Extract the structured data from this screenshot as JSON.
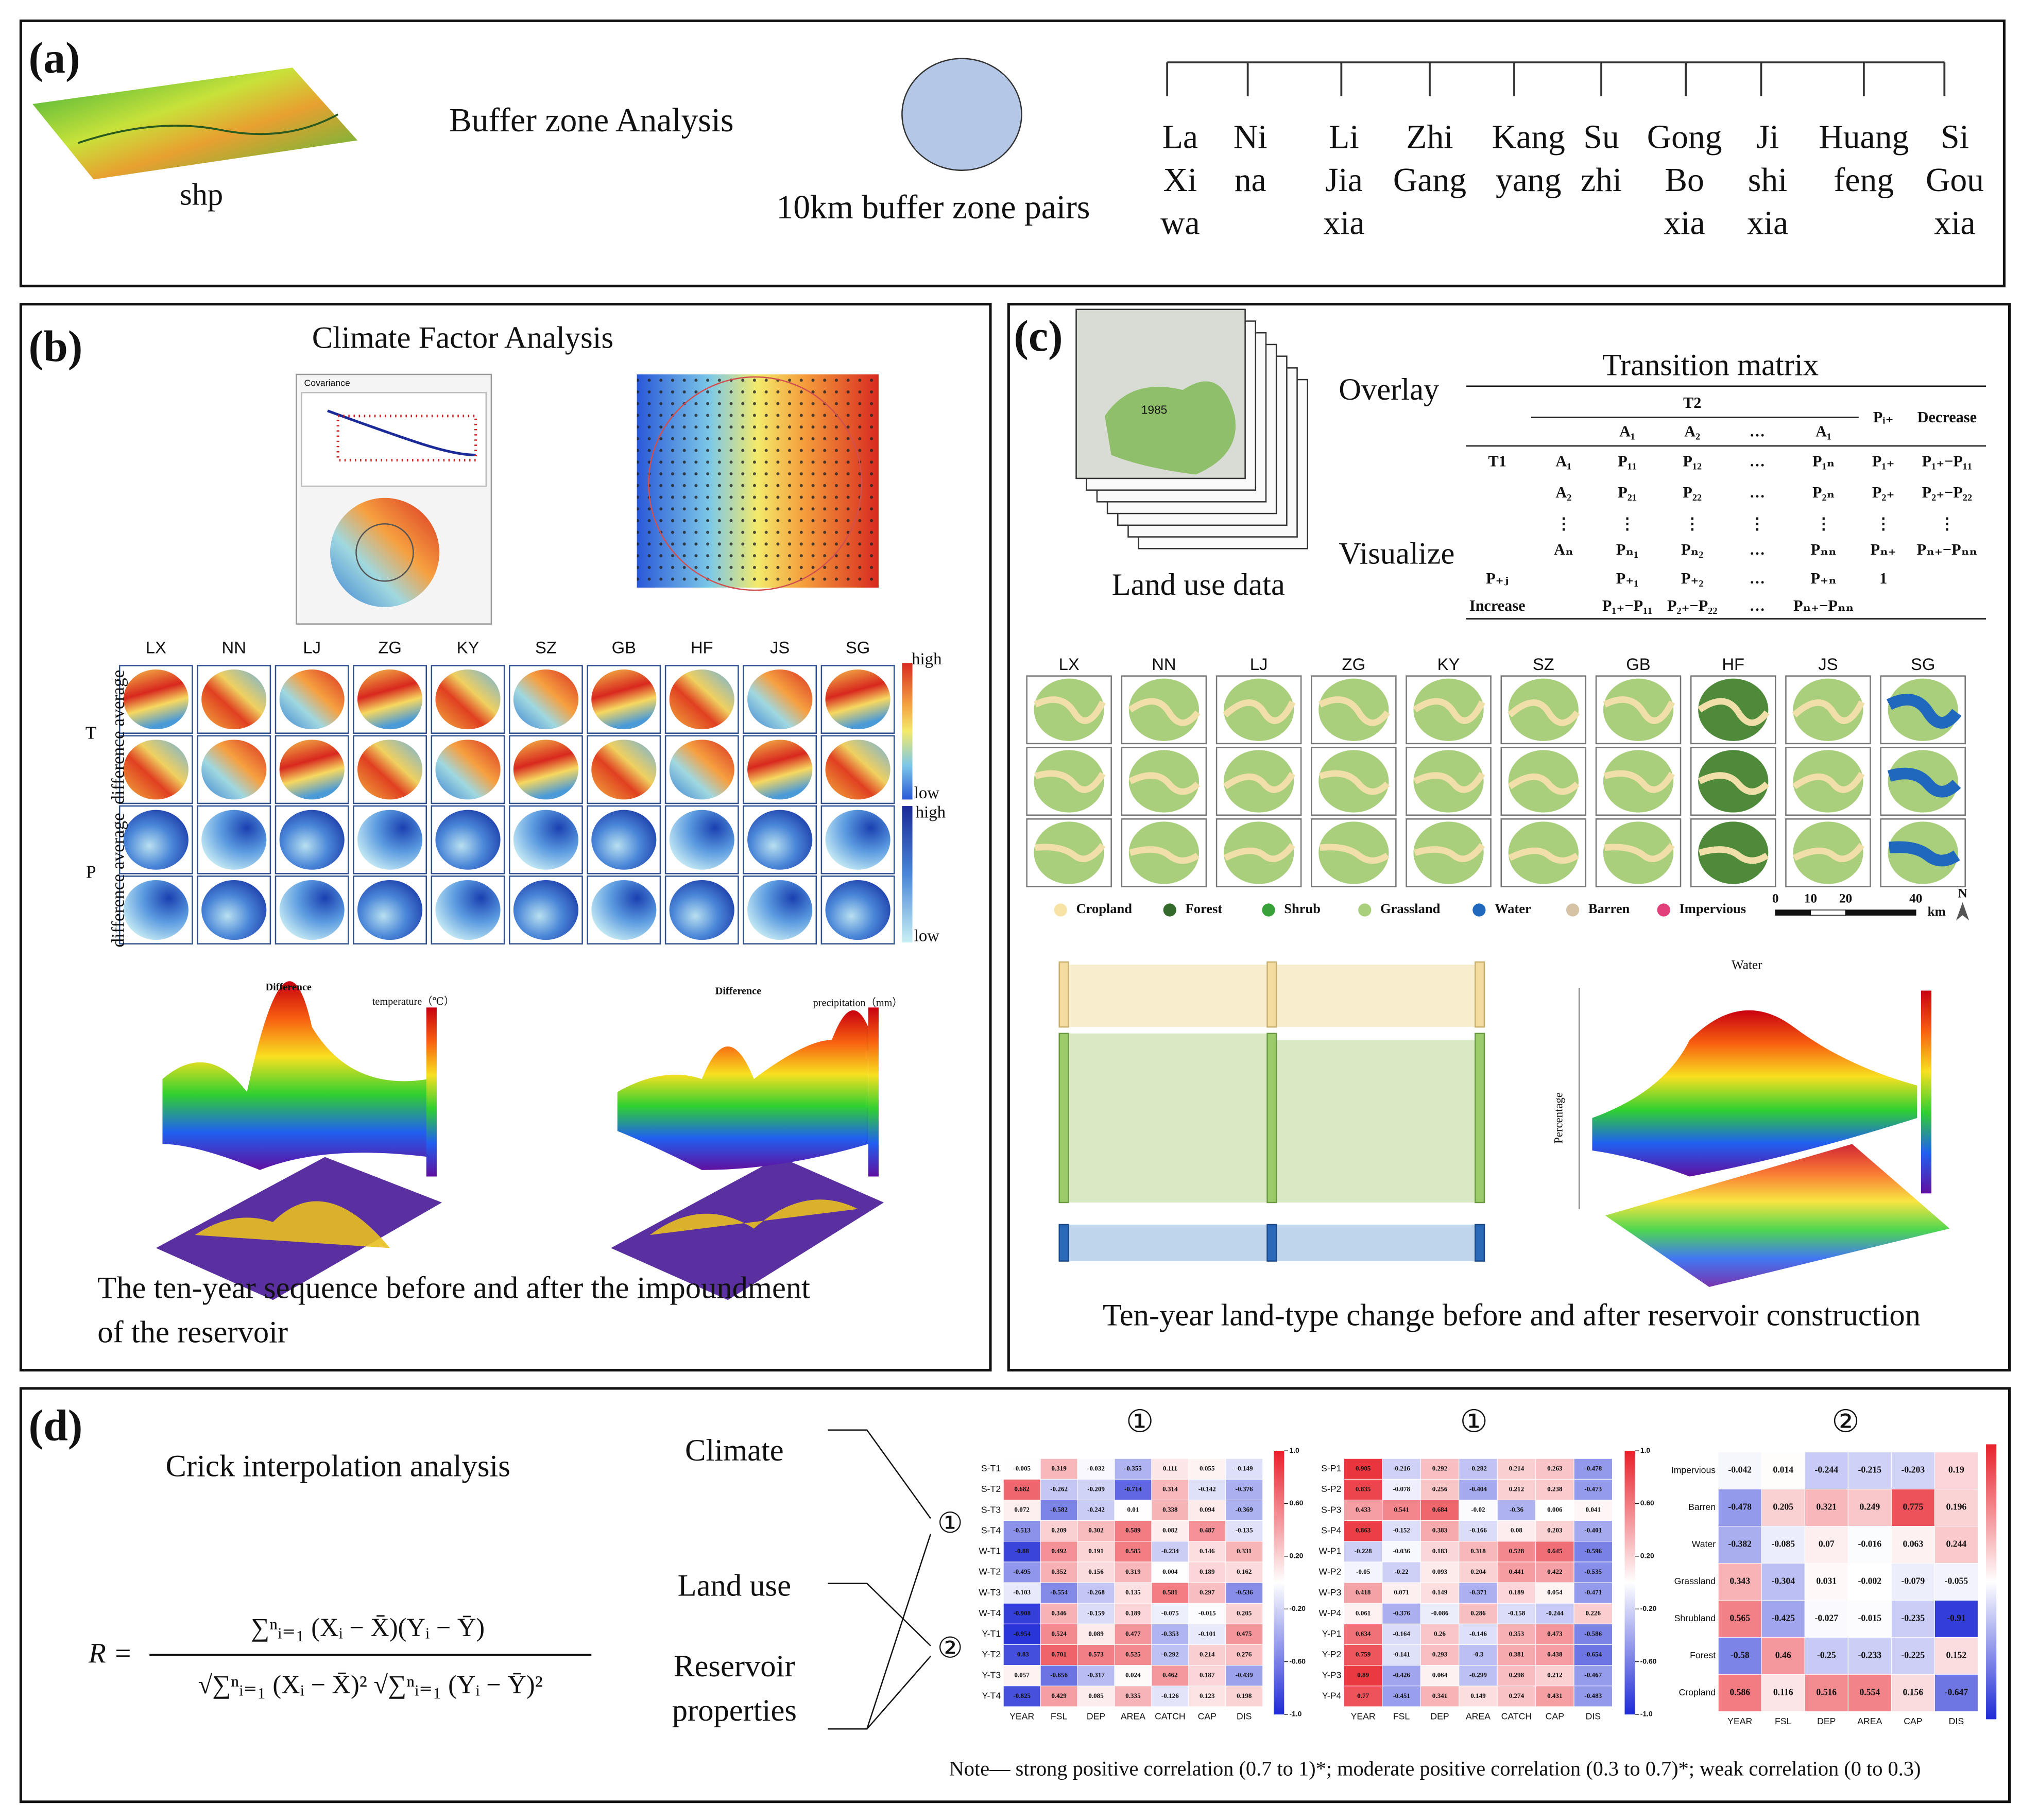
{
  "panel_a": {
    "label": "(a)",
    "shp": "shp",
    "buffer_title": "Buffer zone Analysis",
    "buffer_pairs": "10km buffer zone pairs",
    "stations": [
      [
        "La",
        "Xi",
        "wa"
      ],
      [
        "Ni",
        "na"
      ],
      [
        "Li",
        "Jia",
        "xia"
      ],
      [
        "Zhi",
        "Gang"
      ],
      [
        "Kang",
        "yang"
      ],
      [
        "Su",
        "zhi"
      ],
      [
        "Gong",
        "Bo",
        "xia"
      ],
      [
        "Ji",
        "shi",
        "xia"
      ],
      [
        "Huang",
        "feng"
      ],
      [
        "Si",
        "Gou",
        "xia"
      ]
    ]
  },
  "panel_b": {
    "label": "(b)",
    "title": "Climate  Factor  Analysis",
    "covariance_title": "Covariance",
    "stations": [
      "LX",
      "NN",
      "LJ",
      "ZG",
      "KY",
      "SZ",
      "GB",
      "HF",
      "JS",
      "SG"
    ],
    "rows": [
      "T",
      "P"
    ],
    "row_axis_labels": [
      "difference average",
      "difference average"
    ],
    "legend_t": {
      "high": "high",
      "low": "low"
    },
    "legend_p": {
      "high": "high",
      "low": "low"
    },
    "plots": [
      {
        "title": "Difference",
        "unit": "temperature（℃）"
      },
      {
        "title": "Difference",
        "unit": "precipitation（mm）"
      }
    ],
    "caption": [
      "The ten-year sequence before and after the impoundment",
      "of the reservoir"
    ]
  },
  "panel_c": {
    "label": "(c)",
    "year": "1985",
    "land_use": "Land  use data",
    "overlay": "Overlay",
    "visualize": "Visualize",
    "matrix": {
      "title": "Transition matrix",
      "group": "T2",
      "header": [
        null,
        null,
        "A₁",
        "A₂",
        "…",
        "A₁",
        "Pᵢ₊",
        "Decrease"
      ],
      "rows": [
        [
          "T1",
          "A₁",
          "P₁₁",
          "P₁₂",
          "…",
          "P₁ₙ",
          "P₁₊",
          "P₁₊−P₁₁"
        ],
        [
          null,
          "A₂",
          "P₂₁",
          "P₂₂",
          "…",
          "P₂ₙ",
          "P₂₊",
          "P₂₊−P₂₂"
        ],
        [
          null,
          "⋮",
          "⋮",
          "⋮",
          "⋮",
          "⋮",
          "⋮",
          "⋮"
        ],
        [
          null,
          "Aₙ",
          "Pₙ₁",
          "Pₙ₂",
          "…",
          "Pₙₙ",
          "Pₙ₊",
          "Pₙ₊−Pₙₙ"
        ],
        [
          "P₊ⱼ",
          null,
          "P₊₁",
          "P₊₂",
          "…",
          "P₊ₙ",
          "1",
          null
        ],
        [
          "Increase",
          null,
          "P₁₊−P₁₁",
          "P₂₊−P₂₂",
          "…",
          "Pₙ₊−Pₙₙ",
          null,
          null
        ]
      ]
    },
    "stations": [
      "LX",
      "NN",
      "LJ",
      "ZG",
      "KY",
      "SZ",
      "GB",
      "HF",
      "JS",
      "SG"
    ],
    "legend": [
      {
        "name": "Cropland",
        "color": "#f7e3a6"
      },
      {
        "name": "Forest",
        "color": "#356b2a"
      },
      {
        "name": "Shrub",
        "color": "#39a13a"
      },
      {
        "name": "Grassland",
        "color": "#a9cf7c"
      },
      {
        "name": "Water",
        "color": "#1f68bd"
      },
      {
        "name": "Barren",
        "color": "#d6c3a6"
      },
      {
        "name": "Impervious",
        "color": "#e2407a"
      }
    ],
    "scale": {
      "ticks": [
        0,
        10,
        20,
        40
      ],
      "unit": "km",
      "north": "N"
    },
    "surface": {
      "title": "Water",
      "ylabel": "Percentage"
    },
    "caption": "Ten-year land-type change before and after reservoir construction"
  },
  "panel_d": {
    "label": "(d)",
    "title": "Crick interpolation analysis",
    "formula": {
      "lhs": "R =",
      "numerator": "∑ⁿᵢ₌₁ (Xᵢ − X̄)(Yᵢ − Ȳ)",
      "denominator": "√∑ⁿᵢ₌₁ (Xᵢ − X̄)² √∑ⁿᵢ₌₁ (Yᵢ − Ȳ)²"
    },
    "factors": [
      [
        "Climate"
      ],
      [
        "Land use"
      ],
      [
        "Reservoir",
        "properties"
      ]
    ],
    "groups": [
      "①",
      "②"
    ],
    "heatmaps": [
      {
        "title": "①",
        "rows": [
          "S-T1",
          "S-T2",
          "S-T3",
          "S-T4",
          "W-T1",
          "W-T2",
          "W-T3",
          "W-T4",
          "Y-T1",
          "Y-T2",
          "Y-T3",
          "Y-T4"
        ],
        "columns": [
          "YEAR",
          "FSL",
          "DEP",
          "AREA",
          "CATCH",
          "CAP",
          "DIS"
        ],
        "values": [
          [
            -0.005,
            0.319,
            -0.032,
            -0.355,
            0.111,
            0.055,
            -0.149
          ],
          [
            0.682,
            -0.262,
            -0.209,
            -0.714,
            0.314,
            -0.142,
            -0.376
          ],
          [
            0.072,
            -0.582,
            -0.242,
            0.01,
            0.338,
            0.094,
            -0.369
          ],
          [
            -0.513,
            0.209,
            0.302,
            0.589,
            0.082,
            0.487,
            -0.135
          ],
          [
            -0.88,
            0.492,
            0.191,
            0.585,
            -0.234,
            0.146,
            0.331
          ],
          [
            -0.495,
            0.352,
            0.156,
            0.319,
            0.004,
            0.189,
            0.162
          ],
          [
            -0.103,
            -0.554,
            -0.268,
            0.135,
            0.581,
            0.297,
            -0.536
          ],
          [
            -0.908,
            0.346,
            -0.159,
            0.189,
            -0.075,
            -0.015,
            0.205
          ],
          [
            -0.954,
            0.524,
            0.089,
            0.477,
            -0.353,
            -0.101,
            0.475
          ],
          [
            -0.83,
            0.701,
            0.573,
            0.525,
            -0.292,
            0.214,
            0.276
          ],
          [
            0.057,
            -0.656,
            -0.317,
            0.024,
            0.462,
            0.187,
            -0.439
          ],
          [
            -0.825,
            0.429,
            0.085,
            0.335,
            -0.126,
            0.123,
            0.198
          ]
        ],
        "colorbar_ticks": [
          {
            "value": 1,
            "label": "1.0"
          },
          {
            "value": 0.6,
            "label": "0.60"
          },
          {
            "value": 0.2,
            "label": "0.20"
          },
          {
            "value": -0.2,
            "label": "-0.20"
          },
          {
            "value": -0.6,
            "label": "-0.60"
          },
          {
            "value": -1,
            "label": "-1.0"
          }
        ]
      },
      {
        "title": "①",
        "rows": [
          "S-P1",
          "S-P2",
          "S-P3",
          "S-P4",
          "W-P1",
          "W-P2",
          "W-P3",
          "W-P4",
          "Y-P1",
          "Y-P2",
          "Y-P3",
          "Y-P4"
        ],
        "columns": [
          "YEAR",
          "FSL",
          "DEP",
          "AREA",
          "CATCH",
          "CAP",
          "DIS"
        ],
        "values": [
          [
            0.905,
            -0.216,
            0.292,
            -0.282,
            0.214,
            0.263,
            -0.478
          ],
          [
            0.835,
            -0.078,
            0.256,
            -0.404,
            0.212,
            0.238,
            -0.473
          ],
          [
            0.433,
            0.541,
            0.684,
            -0.02,
            -0.36,
            0.006,
            0.041
          ],
          [
            0.863,
            -0.152,
            0.383,
            -0.166,
            0.08,
            0.203,
            -0.401
          ],
          [
            -0.228,
            -0.036,
            0.183,
            0.318,
            0.528,
            0.645,
            -0.596
          ],
          [
            -0.05,
            -0.22,
            0.093,
            0.204,
            0.441,
            0.422,
            -0.535
          ],
          [
            0.418,
            0.071,
            0.149,
            -0.371,
            0.189,
            0.054,
            -0.471
          ],
          [
            0.061,
            -0.376,
            -0.086,
            0.286,
            -0.158,
            -0.244,
            0.226
          ],
          [
            0.634,
            -0.164,
            0.26,
            -0.146,
            0.353,
            0.473,
            -0.586
          ],
          [
            0.759,
            -0.141,
            0.293,
            -0.3,
            0.381,
            0.438,
            -0.654
          ],
          [
            0.89,
            -0.426,
            0.064,
            -0.299,
            0.298,
            0.212,
            -0.467
          ],
          [
            0.77,
            -0.451,
            0.341,
            0.149,
            0.274,
            0.431,
            -0.483
          ]
        ],
        "colorbar_ticks": [
          {
            "value": 1,
            "label": "1.0"
          },
          {
            "value": 0.6,
            "label": "0.60"
          },
          {
            "value": 0.2,
            "label": "0.20"
          },
          {
            "value": -0.2,
            "label": "-0.20"
          },
          {
            "value": -0.6,
            "label": "-0.60"
          },
          {
            "value": -1,
            "label": "-1.0"
          }
        ]
      },
      {
        "title": "②",
        "rows": [
          "Impervious",
          "Barren",
          "Water",
          "Grassland",
          "Shrubland",
          "Forest",
          "Cropland"
        ],
        "columns": [
          "YEAR",
          "FSL",
          "DEP",
          "AREA",
          "CAP",
          "DIS"
        ],
        "values": [
          [
            -0.042,
            0.014,
            -0.244,
            -0.215,
            -0.203,
            0.19
          ],
          [
            -0.478,
            0.205,
            0.321,
            0.249,
            0.775,
            0.196
          ],
          [
            -0.382,
            -0.085,
            0.07,
            -0.016,
            0.063,
            0.244
          ],
          [
            0.343,
            -0.304,
            0.031,
            -0.002,
            -0.079,
            -0.055
          ],
          [
            0.565,
            -0.425,
            -0.027,
            -0.015,
            -0.235,
            -0.91
          ],
          [
            -0.58,
            0.46,
            -0.25,
            -0.233,
            -0.225,
            0.152
          ],
          [
            0.586,
            0.116,
            0.516,
            0.554,
            0.156,
            -0.647
          ]
        ]
      }
    ],
    "note": "Note— strong positive correlation (0.7 to 1)*; moderate positive correlation (0.3 to 0.7)*; weak correlation (0 to 0.3)"
  }
}
